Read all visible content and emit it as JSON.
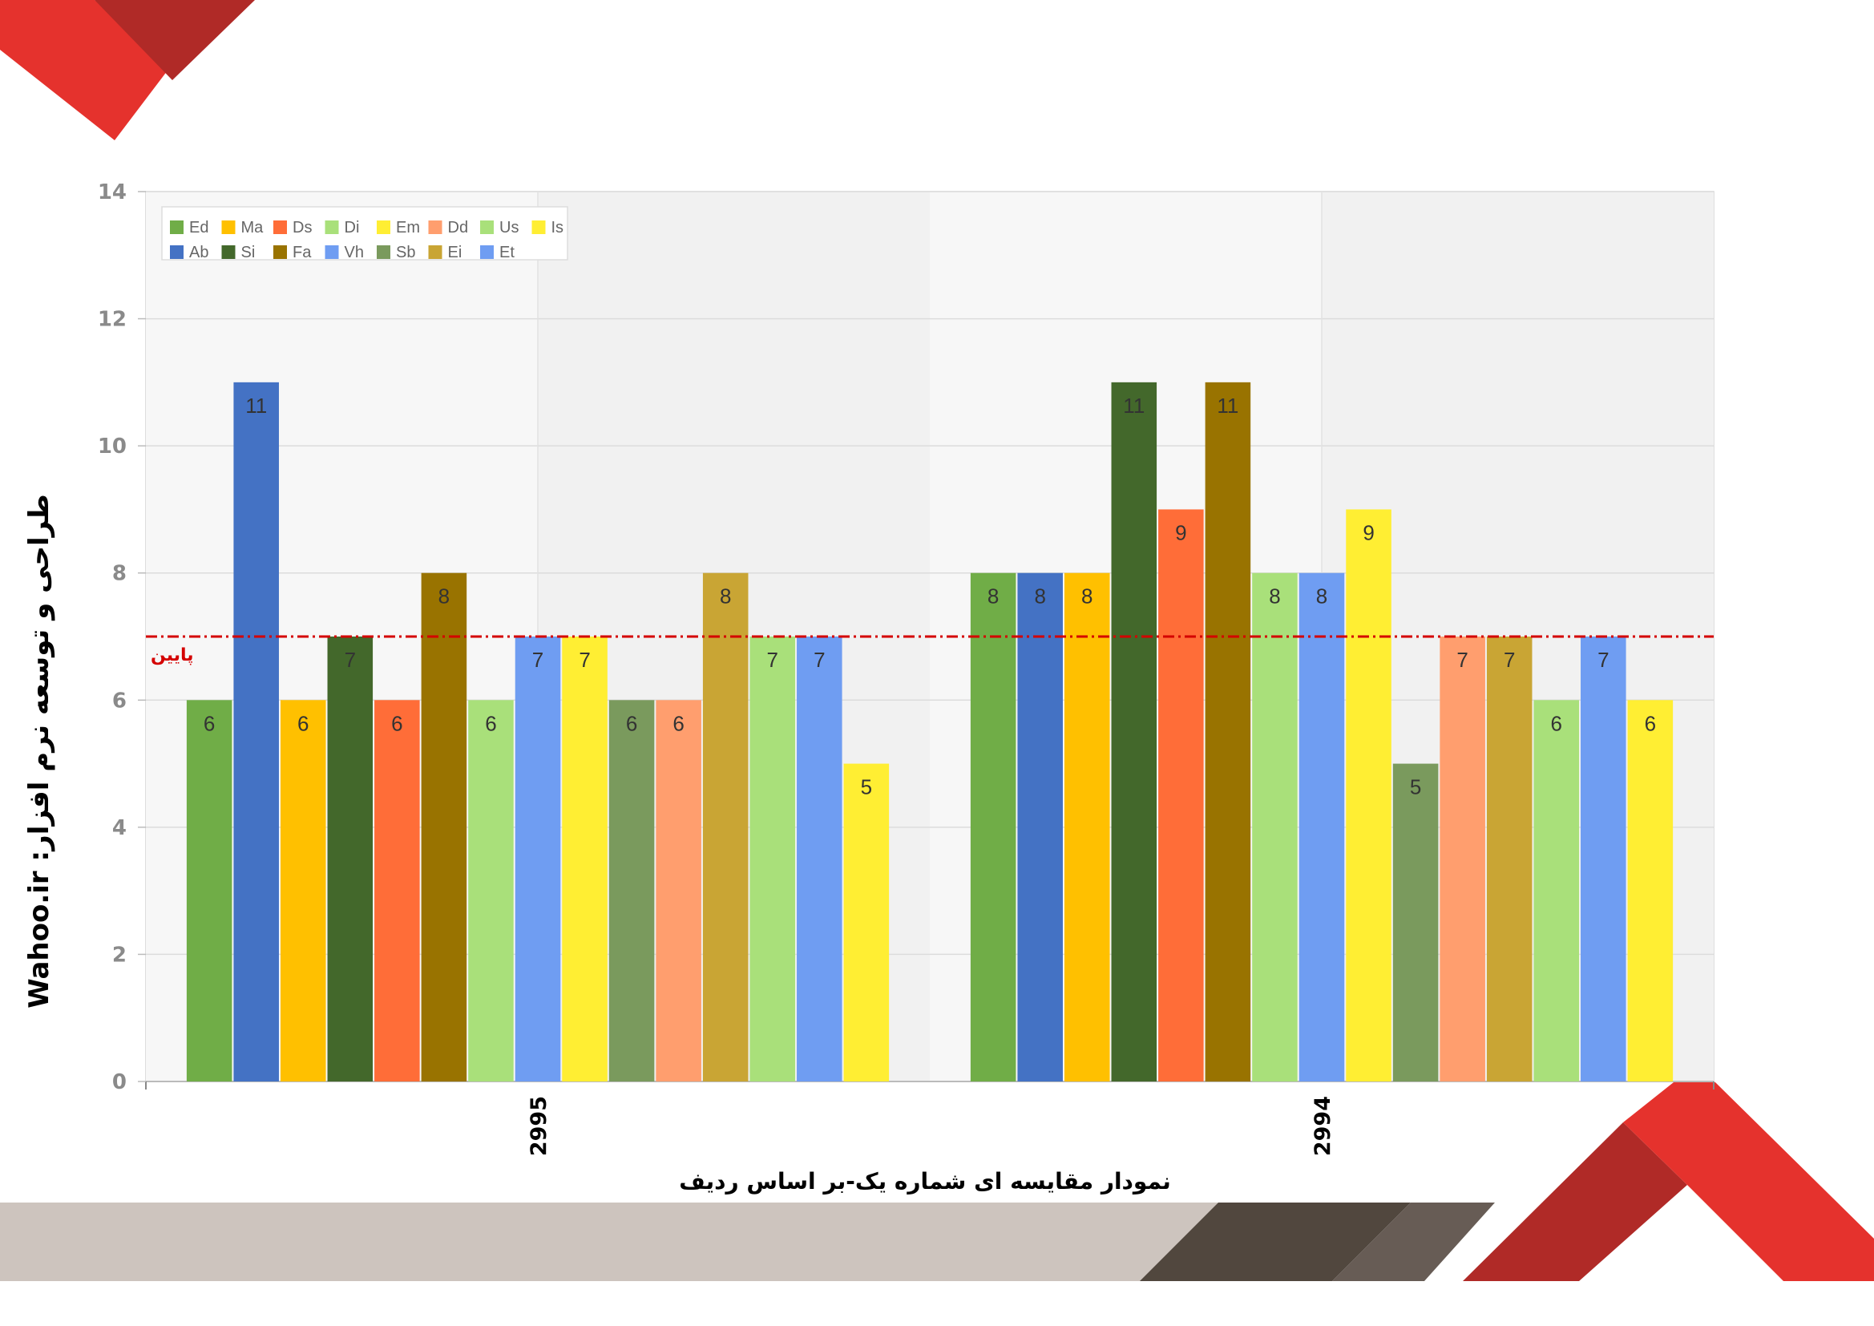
{
  "chart_data": {
    "type": "bar",
    "categories": [
      "2995",
      "2994"
    ],
    "series": [
      {
        "name": "Ed",
        "color": "#70ad47",
        "values": [
          6,
          8
        ]
      },
      {
        "name": "Ab",
        "color": "#4472c4",
        "values": [
          11,
          8
        ]
      },
      {
        "name": "Ma",
        "color": "#ffc000",
        "values": [
          6,
          8
        ]
      },
      {
        "name": "Si",
        "color": "#43682b",
        "values": [
          7,
          11
        ]
      },
      {
        "name": "Ds",
        "color": "#ff6d38",
        "values": [
          6,
          9
        ]
      },
      {
        "name": "Fa",
        "color": "#997300",
        "values": [
          8,
          11
        ]
      },
      {
        "name": "Di",
        "color": "#a9e07a",
        "values": [
          6,
          8
        ]
      },
      {
        "name": "Vh",
        "color": "#6f9df2",
        "values": [
          7,
          8
        ]
      },
      {
        "name": "Em",
        "color": "#ffee33",
        "values": [
          7,
          9
        ]
      },
      {
        "name": "Sb",
        "color": "#7a9a5d",
        "values": [
          6,
          5
        ]
      },
      {
        "name": "Dd",
        "color": "#ff9e6e",
        "values": [
          6,
          7
        ]
      },
      {
        "name": "Ei",
        "color": "#c9a534",
        "values": [
          8,
          7
        ]
      },
      {
        "name": "Us",
        "color": "#a9e07a",
        "values": [
          7,
          6
        ]
      },
      {
        "name": "Et",
        "color": "#6f9df2",
        "values": [
          7,
          7
        ]
      },
      {
        "name": "Is",
        "color": "#ffee33",
        "values": [
          5,
          6
        ]
      }
    ],
    "legend_order": [
      "Ed",
      "Ma",
      "Ds",
      "Di",
      "Em",
      "Dd",
      "Us",
      "Is",
      "Ab",
      "Si",
      "Fa",
      "Vh",
      "Sb",
      "Ei",
      "Et"
    ],
    "ylim": [
      0,
      14
    ],
    "yticks": [
      0,
      2,
      4,
      6,
      8,
      10,
      12,
      14
    ],
    "reference_line": {
      "value": 7,
      "label": "پایین",
      "color": "#d40000"
    },
    "xlabel": "نمودار مقایسه ای شماره یک-بر اساس ردیف",
    "ylabel": "طراحی و توسعه نرم افزار: Wahoo.ir",
    "legend_placement": "top-left",
    "grid": true
  }
}
